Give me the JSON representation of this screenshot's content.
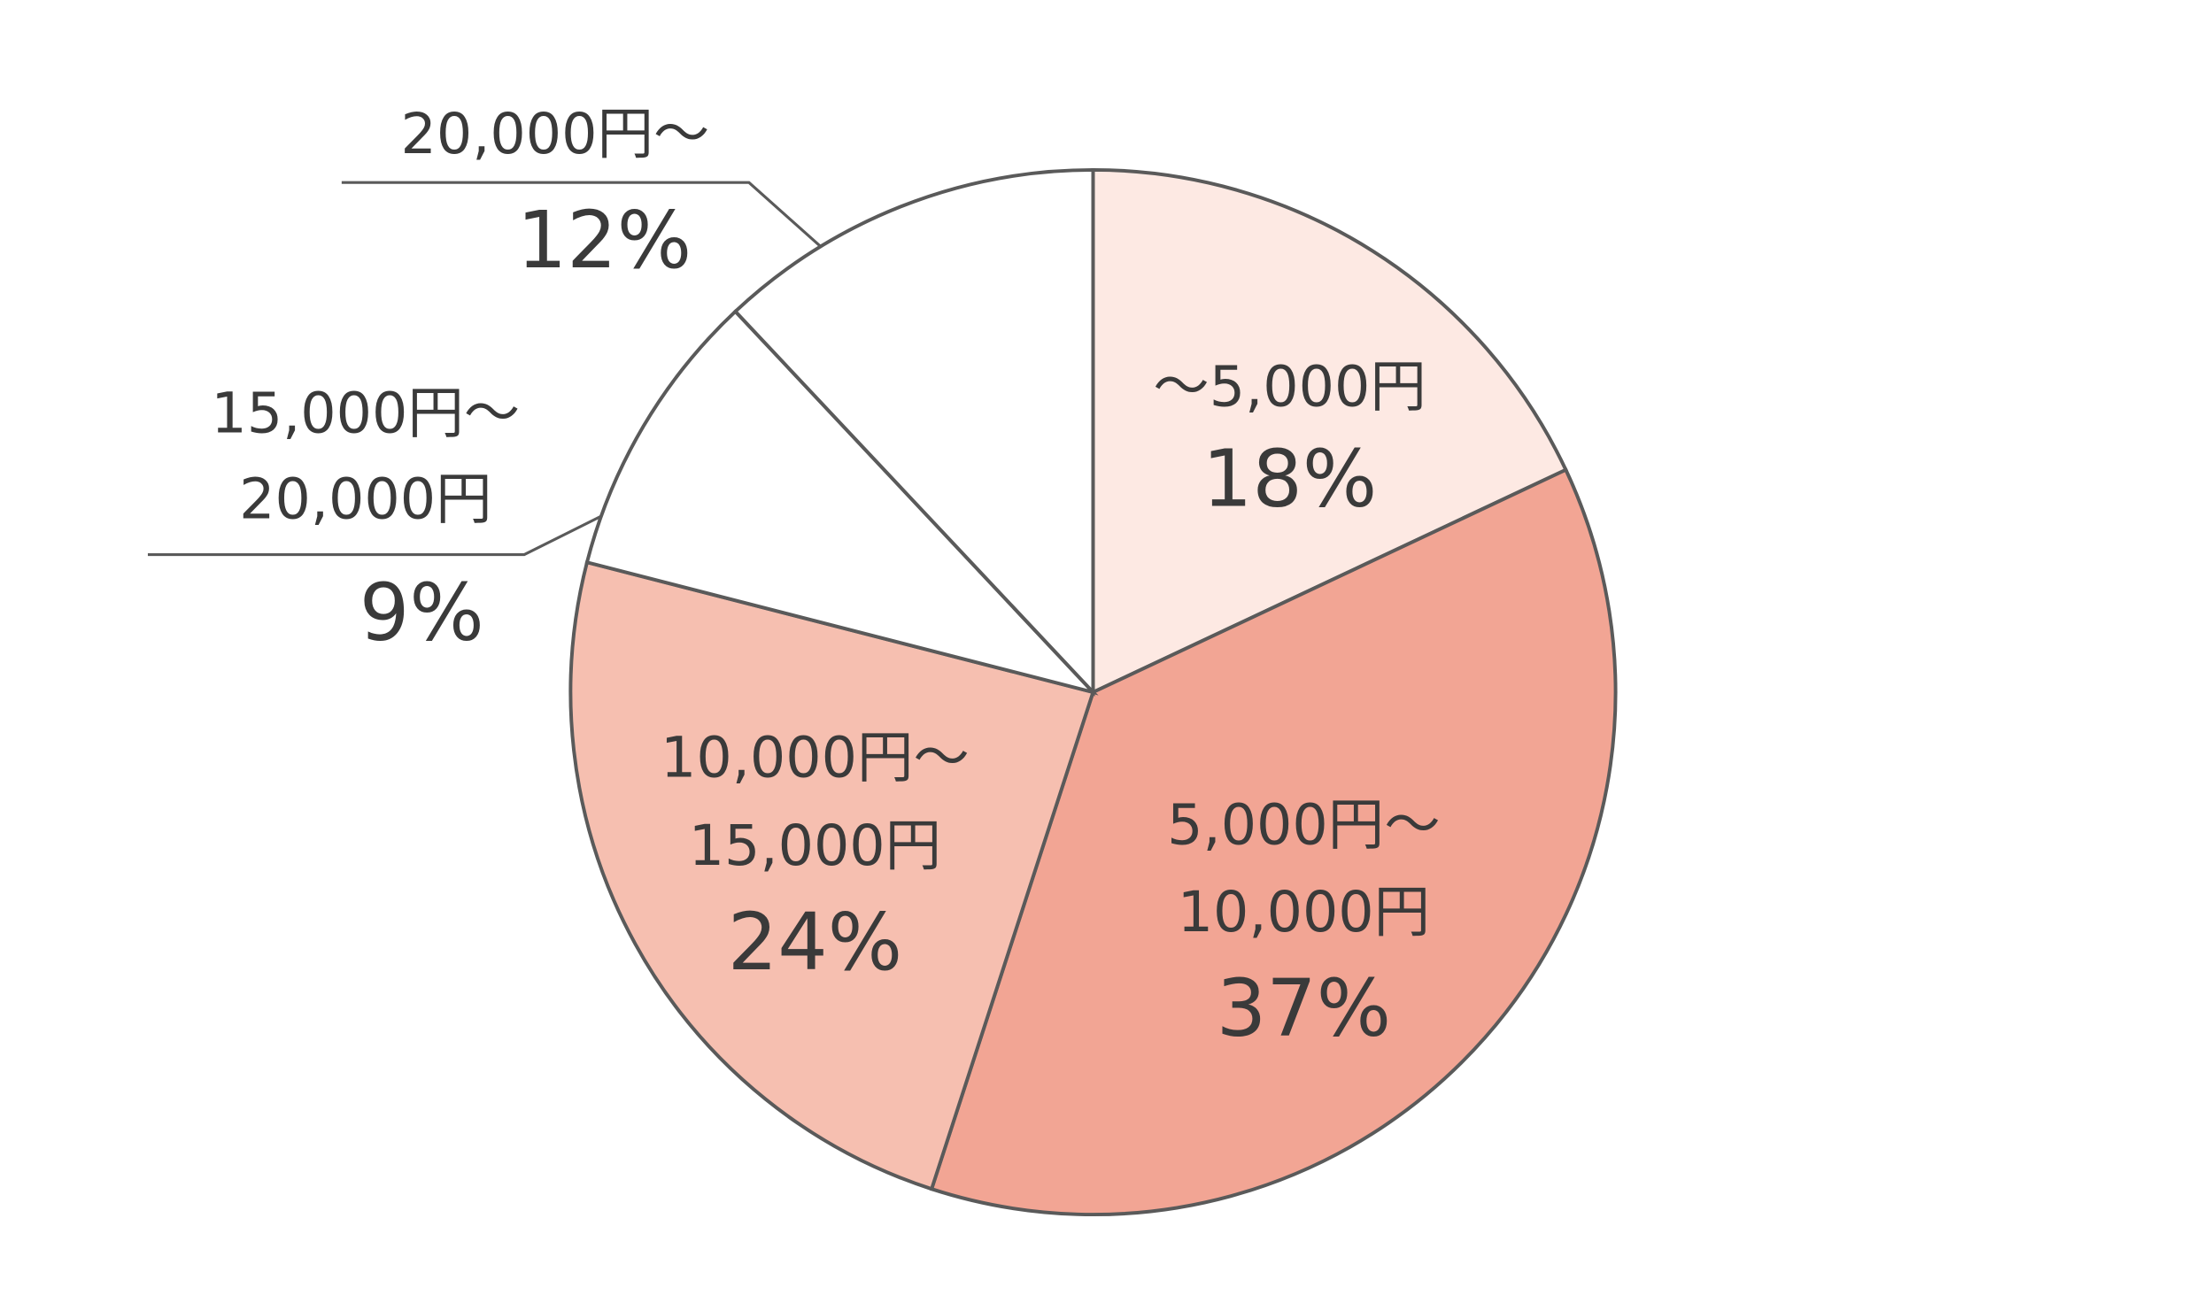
{
  "chart_data": {
    "type": "pie",
    "categories": [
      [
        "〜5,000円"
      ],
      [
        "5,000円〜",
        "10,000円"
      ],
      [
        "10,000円〜",
        "15,000円"
      ],
      [
        "15,000円〜",
        "20,000円"
      ],
      [
        "20,000円〜"
      ]
    ],
    "values": [
      18,
      37,
      24,
      9,
      12
    ],
    "value_labels": [
      "18%",
      "37%",
      "24%",
      "9%",
      "12%"
    ],
    "colors": [
      "#fde9e3",
      "#f2a594",
      "#f6bfb0",
      "#ffffff",
      "#ffffff"
    ]
  }
}
